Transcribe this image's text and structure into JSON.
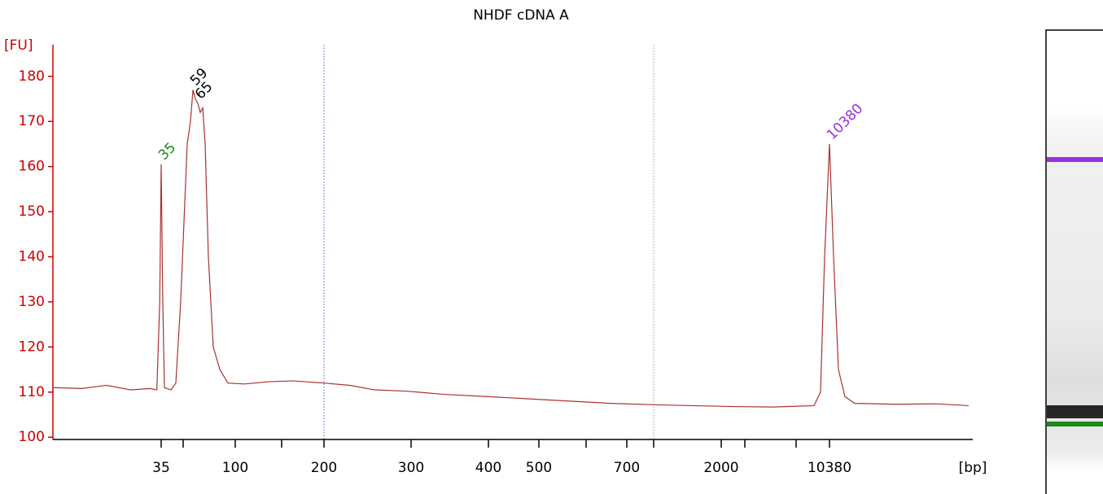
{
  "chart_data": {
    "type": "line",
    "title": "NHDF cDNA A",
    "y_label": "[FU]",
    "x_label": "[bp]",
    "color": "#a83232",
    "axis_color": "#cc0000",
    "ylim": [
      99.5,
      187
    ],
    "yticks": [
      100,
      110,
      120,
      130,
      140,
      150,
      160,
      170,
      180
    ],
    "xlim": [
      20,
      17000
    ],
    "xticks": [
      35,
      {
        "value": 50,
        "label": null
      },
      100,
      {
        "value": 150,
        "label": null
      },
      200,
      300,
      400,
      500,
      {
        "value": 600,
        "label": null
      },
      700,
      {
        "value": 1000,
        "label": null
      },
      2000,
      {
        "value": 3000,
        "label": null
      },
      {
        "value": 7000,
        "label": null
      },
      10380
    ],
    "vlines": [
      {
        "value": 200,
        "color": "#5b5bd6"
      },
      {
        "value": 1000,
        "color": "#9a9aa8"
      }
    ],
    "x": [
      20,
      24,
      27.4,
      30.8,
      33.5,
      34.4,
      34.8,
      35,
      36.1,
      37.2,
      41.7,
      45,
      48.3,
      53.9,
      57,
      59.4,
      61.7,
      64.1,
      66.4,
      68.8,
      71.1,
      74.2,
      78.9,
      85.2,
      93,
      109.6,
      136,
      163.5,
      200,
      229.9,
      258,
      295.3,
      342.9,
      400,
      480.6,
      565.5,
      660,
      1000,
      1566,
      2483,
      5222,
      8813,
      9473,
      9885,
      10380,
      10568,
      10794,
      11095,
      11546,
      13426,
      15306,
      16810
    ],
    "values": [
      111,
      110.8,
      111.5,
      110.5,
      110.8,
      110.5,
      130,
      160.5,
      130,
      111,
      110.5,
      112,
      130,
      165,
      170,
      177,
      175,
      174,
      172,
      173,
      165,
      140,
      120,
      115,
      112,
      111.8,
      112.3,
      112.5,
      112,
      111.5,
      110.5,
      110.2,
      109.5,
      109,
      108.5,
      108,
      107.5,
      107.2,
      107,
      106.8,
      106.7,
      107,
      110,
      140,
      165,
      140,
      115,
      109,
      107.5,
      107.3,
      107.4,
      107
    ],
    "annotations": [
      {
        "text": "35",
        "x": 35,
        "y": 160.5,
        "color": "#1a8a1a"
      },
      {
        "text": "59",
        "x": 59.4,
        "y": 177,
        "color": "#000000"
      },
      {
        "text": "65",
        "x": 64.1,
        "y": 174,
        "color": "#000000"
      },
      {
        "text": "10380",
        "x": 10380,
        "y": 165,
        "color": "#9b30e0"
      }
    ]
  }
}
